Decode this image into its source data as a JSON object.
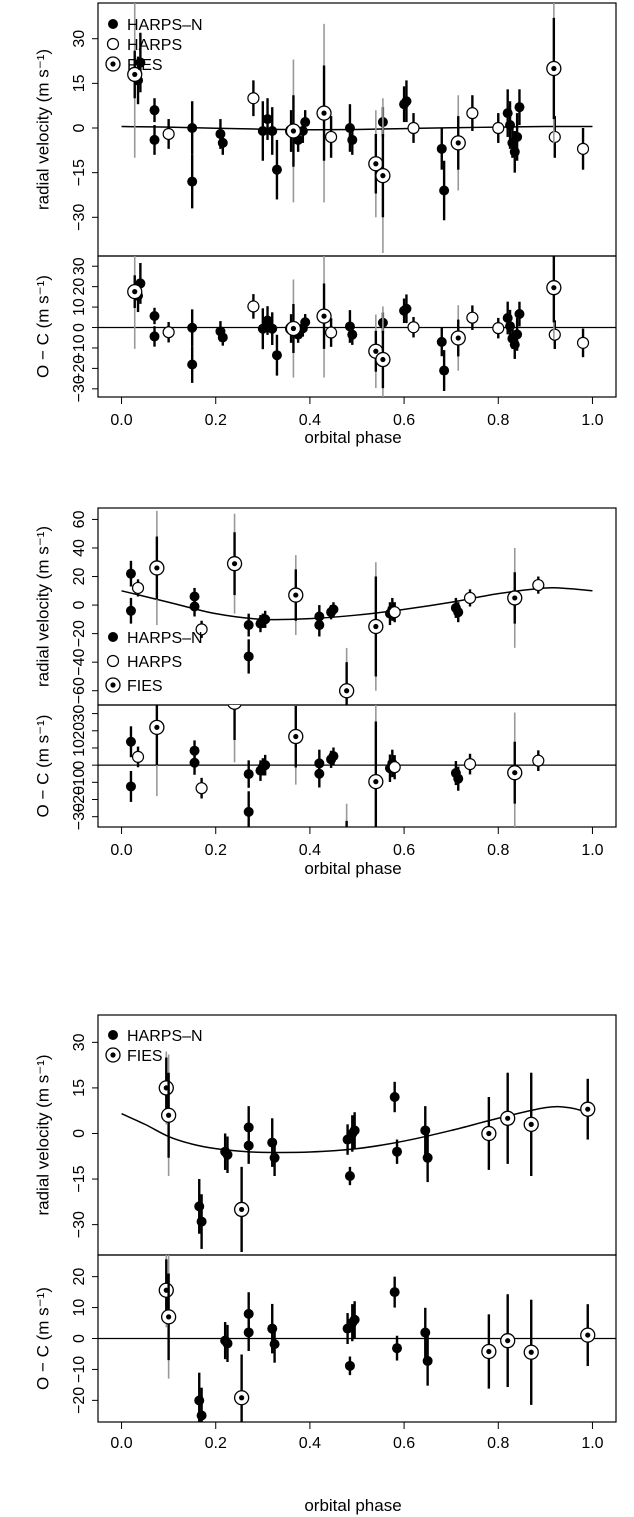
{
  "chart_data": [
    {
      "type": "scatter",
      "xlabel": "orbital phase",
      "xlim": [
        -0.05,
        1.05
      ],
      "xticks": [
        0.0,
        0.2,
        0.4,
        0.6,
        0.8,
        1.0
      ],
      "xtick_labels": [
        "0.0",
        "0.2",
        "0.4",
        "0.6",
        "0.8",
        "1.0"
      ],
      "legend": {
        "position": "top-left",
        "entries": [
          "HARPS–N",
          "HARPS",
          "FIES"
        ]
      },
      "rv_panel": {
        "ylabel": "radial velocity (m s⁻¹)",
        "ylim": [
          -43,
          42
        ],
        "yticks": [
          -30,
          -15,
          0,
          15,
          30
        ],
        "ytick_labels": [
          "−30",
          "−15",
          "0",
          "15",
          "30"
        ],
        "model": {
          "phase": [
            0.0,
            0.1,
            0.2,
            0.3,
            0.4,
            0.5,
            0.6,
            0.7,
            0.8,
            0.9,
            1.0
          ],
          "rv": [
            0.5,
            0.3,
            -0.1,
            -0.4,
            -0.6,
            -0.5,
            -0.2,
            0.1,
            0.3,
            0.5,
            0.5
          ]
        }
      },
      "res_panel": {
        "ylabel": "O − C (m s⁻¹)",
        "ylim": [
          -34,
          35
        ],
        "yticks": [
          -30,
          -20,
          -10,
          0,
          10,
          20,
          30
        ],
        "ytick_labels": [
          "−30",
          "−20",
          "−10",
          "0",
          "10",
          "20",
          "30"
        ]
      },
      "series": [
        {
          "name": "HARPS–N",
          "marker": "filled",
          "points": [
            [
              0.035,
              16,
              8,
              6
            ],
            [
              0.04,
              22,
              10,
              7
            ],
            [
              0.07,
              6,
              4,
              4
            ],
            [
              0.07,
              -4,
              5,
              5
            ],
            [
              0.15,
              0,
              9,
              7
            ],
            [
              0.15,
              -18,
              9,
              6
            ],
            [
              0.21,
              -2,
              5,
              5
            ],
            [
              0.215,
              -5,
              4,
              4
            ],
            [
              0.3,
              -1,
              10,
              6
            ],
            [
              0.31,
              3,
              7,
              7
            ],
            [
              0.32,
              -1,
              8,
              6
            ],
            [
              0.33,
              -14,
              10,
              7
            ],
            [
              0.375,
              -4,
              4,
              4
            ],
            [
              0.385,
              -1,
              4,
              4
            ],
            [
              0.39,
              2,
              4,
              4
            ],
            [
              0.485,
              0,
              8,
              7
            ],
            [
              0.49,
              -4,
              5,
              5
            ],
            [
              0.555,
              2,
              5,
              5
            ],
            [
              0.6,
              8,
              6,
              5
            ],
            [
              0.605,
              9,
              7,
              6
            ],
            [
              0.68,
              -7,
              7,
              6
            ],
            [
              0.685,
              -21,
              10,
              7
            ],
            [
              0.82,
              5,
              8,
              6
            ],
            [
              0.825,
              1,
              8,
              7
            ],
            [
              0.83,
              -5,
              5,
              5
            ],
            [
              0.835,
              -8,
              7,
              6
            ],
            [
              0.84,
              -3,
              8,
              6
            ],
            [
              0.845,
              7,
              6,
              6
            ]
          ]
        },
        {
          "name": "HARPS",
          "marker": "open",
          "points": [
            [
              0.1,
              -2,
              5,
              5
            ],
            [
              0.28,
              10,
              6,
              6
            ],
            [
              0.36,
              -1,
              7,
              7
            ],
            [
              0.445,
              -3,
              7,
              7
            ],
            [
              0.62,
              0,
              5,
              5
            ],
            [
              0.745,
              5,
              6,
              6
            ],
            [
              0.8,
              0,
              5,
              5
            ],
            [
              0.92,
              -3,
              7,
              7
            ],
            [
              0.98,
              -7,
              7,
              7
            ]
          ]
        },
        {
          "name": "FIES",
          "marker": "dotted",
          "points": [
            [
              0.028,
              18,
              8,
              28
            ],
            [
              0.365,
              -1,
              12,
              24
            ],
            [
              0.43,
              5,
              16,
              30
            ],
            [
              0.54,
              -12,
              10,
              18
            ],
            [
              0.555,
              -16,
              14,
              26
            ],
            [
              0.715,
              -5,
              9,
              16
            ],
            [
              0.918,
              20,
              17,
              25
            ]
          ]
        }
      ]
    },
    {
      "type": "scatter",
      "xlabel": "orbital phase",
      "xlim": [
        -0.05,
        1.05
      ],
      "xticks": [
        0.0,
        0.2,
        0.4,
        0.6,
        0.8,
        1.0
      ],
      "xtick_labels": [
        "0.0",
        "0.2",
        "0.4",
        "0.6",
        "0.8",
        "1.0"
      ],
      "legend": {
        "position": "bottom-left",
        "entries": [
          "HARPS–N",
          "HARPS",
          "FIES"
        ]
      },
      "rv_panel": {
        "ylabel": "radial velocity (m s⁻¹)",
        "ylim": [
          -70,
          68
        ],
        "yticks": [
          -60,
          -40,
          -20,
          0,
          20,
          40,
          60
        ],
        "ytick_labels": [
          "−60",
          "−40",
          "−20",
          "0",
          "20",
          "40",
          "60"
        ],
        "model": {
          "phase": [
            0.0,
            0.1,
            0.2,
            0.3,
            0.4,
            0.5,
            0.6,
            0.7,
            0.8,
            0.9,
            0.95,
            1.0
          ],
          "rv": [
            10,
            2,
            -6,
            -10,
            -9.5,
            -7,
            -3,
            2,
            8,
            12,
            11.5,
            10
          ]
        }
      },
      "res_panel": {
        "ylabel": "O − C (m s⁻¹)",
        "ylim": [
          -36,
          35
        ],
        "yticks": [
          -30,
          -20,
          -10,
          0,
          10,
          20,
          30
        ],
        "ytick_labels": [
          "−30",
          "−20",
          "−10",
          "0",
          "10",
          "20",
          "30"
        ]
      },
      "series": [
        {
          "name": "HARPS–N",
          "marker": "filled",
          "points": [
            [
              0.02,
              22,
              9,
              8
            ],
            [
              0.02,
              -4,
              9,
              7
            ],
            [
              0.155,
              6,
              6,
              5
            ],
            [
              0.155,
              -1,
              7,
              6
            ],
            [
              0.27,
              -14,
              8,
              7
            ],
            [
              0.27,
              -36,
              12,
              8
            ],
            [
              0.295,
              -13,
              6,
              5
            ],
            [
              0.3,
              -11,
              5,
              5
            ],
            [
              0.305,
              -10,
              6,
              5
            ],
            [
              0.42,
              -8,
              8,
              6
            ],
            [
              0.42,
              -14,
              8,
              6
            ],
            [
              0.445,
              -5,
              5,
              4
            ],
            [
              0.45,
              -3,
              5,
              4
            ],
            [
              0.57,
              -6,
              8,
              6
            ],
            [
              0.575,
              -3,
              8,
              6
            ],
            [
              0.71,
              -2,
              7,
              5
            ],
            [
              0.715,
              -5,
              7,
              5
            ]
          ]
        },
        {
          "name": "HARPS",
          "marker": "open",
          "points": [
            [
              0.035,
              12,
              6,
              6
            ],
            [
              0.17,
              -17,
              6,
              6
            ],
            [
              0.58,
              -5,
              7,
              7
            ],
            [
              0.74,
              5,
              6,
              6
            ],
            [
              0.885,
              14,
              6,
              6
            ]
          ]
        },
        {
          "name": "FIES",
          "marker": "dotted",
          "points": [
            [
              0.075,
              26,
              22,
              40
            ],
            [
              0.24,
              29,
              22,
              35
            ],
            [
              0.37,
              7,
              18,
              28
            ],
            [
              0.478,
              -60,
              20,
              30
            ],
            [
              0.54,
              -15,
              35,
              45
            ],
            [
              0.835,
              5,
              18,
              35
            ]
          ]
        }
      ]
    },
    {
      "type": "scatter",
      "xlabel": "orbital phase",
      "xlim": [
        -0.05,
        1.05
      ],
      "xticks": [
        0.0,
        0.2,
        0.4,
        0.6,
        0.8,
        1.0
      ],
      "xtick_labels": [
        "0.0",
        "0.2",
        "0.4",
        "0.6",
        "0.8",
        "1.0"
      ],
      "legend": {
        "position": "top-left",
        "entries": [
          "HARPS–N",
          "FIES"
        ]
      },
      "rv_panel": {
        "ylabel": "radial velocity (m s⁻¹)",
        "ylim": [
          -40,
          39
        ],
        "yticks": [
          -30,
          -15,
          0,
          15,
          30
        ],
        "ytick_labels": [
          "−30",
          "−15",
          "0",
          "15",
          "30"
        ],
        "model": {
          "phase": [
            0.0,
            0.05,
            0.1,
            0.15,
            0.2,
            0.25,
            0.3,
            0.4,
            0.5,
            0.6,
            0.7,
            0.8,
            0.9,
            0.95,
            1.0
          ],
          "rv": [
            6.5,
            3,
            -1,
            -3.5,
            -5,
            -5.8,
            -6.2,
            -6.1,
            -5,
            -2.5,
            1,
            5,
            8.5,
            8.5,
            6.5
          ]
        }
      },
      "res_panel": {
        "ylabel": "O − C (m s⁻¹)",
        "ylim": [
          -27,
          27
        ],
        "yticks": [
          -20,
          -10,
          0,
          10,
          20
        ],
        "ytick_labels": [
          "−20",
          "−10",
          "0",
          "10",
          "20"
        ]
      },
      "series": [
        {
          "name": "HARPS–N",
          "marker": "filled",
          "points": [
            [
              0.165,
              -24,
              9,
              7
            ],
            [
              0.17,
              -29,
              9,
              7
            ],
            [
              0.22,
              -6,
              6,
              5
            ],
            [
              0.225,
              -7,
              6,
              5
            ],
            [
              0.27,
              2,
              7,
              6
            ],
            [
              0.27,
              -4,
              6,
              5
            ],
            [
              0.32,
              -3,
              8,
              6
            ],
            [
              0.325,
              -8,
              6,
              5
            ],
            [
              0.48,
              -2,
              5,
              5
            ],
            [
              0.485,
              -14,
              3,
              3
            ],
            [
              0.49,
              0,
              6,
              5
            ],
            [
              0.495,
              1,
              6,
              5
            ],
            [
              0.58,
              12,
              5,
              4
            ],
            [
              0.585,
              -6,
              4,
              4
            ],
            [
              0.645,
              1,
              8,
              6
            ],
            [
              0.65,
              -8,
              8,
              6
            ]
          ]
        },
        {
          "name": "FIES",
          "marker": "dotted",
          "points": [
            [
              0.095,
              15,
              10,
              12
            ],
            [
              0.1,
              6,
              14,
              20
            ],
            [
              0.255,
              -25,
              14,
              14
            ],
            [
              0.78,
              0,
              12,
              12
            ],
            [
              0.82,
              5,
              15,
              15
            ],
            [
              0.87,
              3,
              17,
              17
            ],
            [
              0.99,
              8,
              10,
              8
            ]
          ]
        }
      ]
    }
  ]
}
